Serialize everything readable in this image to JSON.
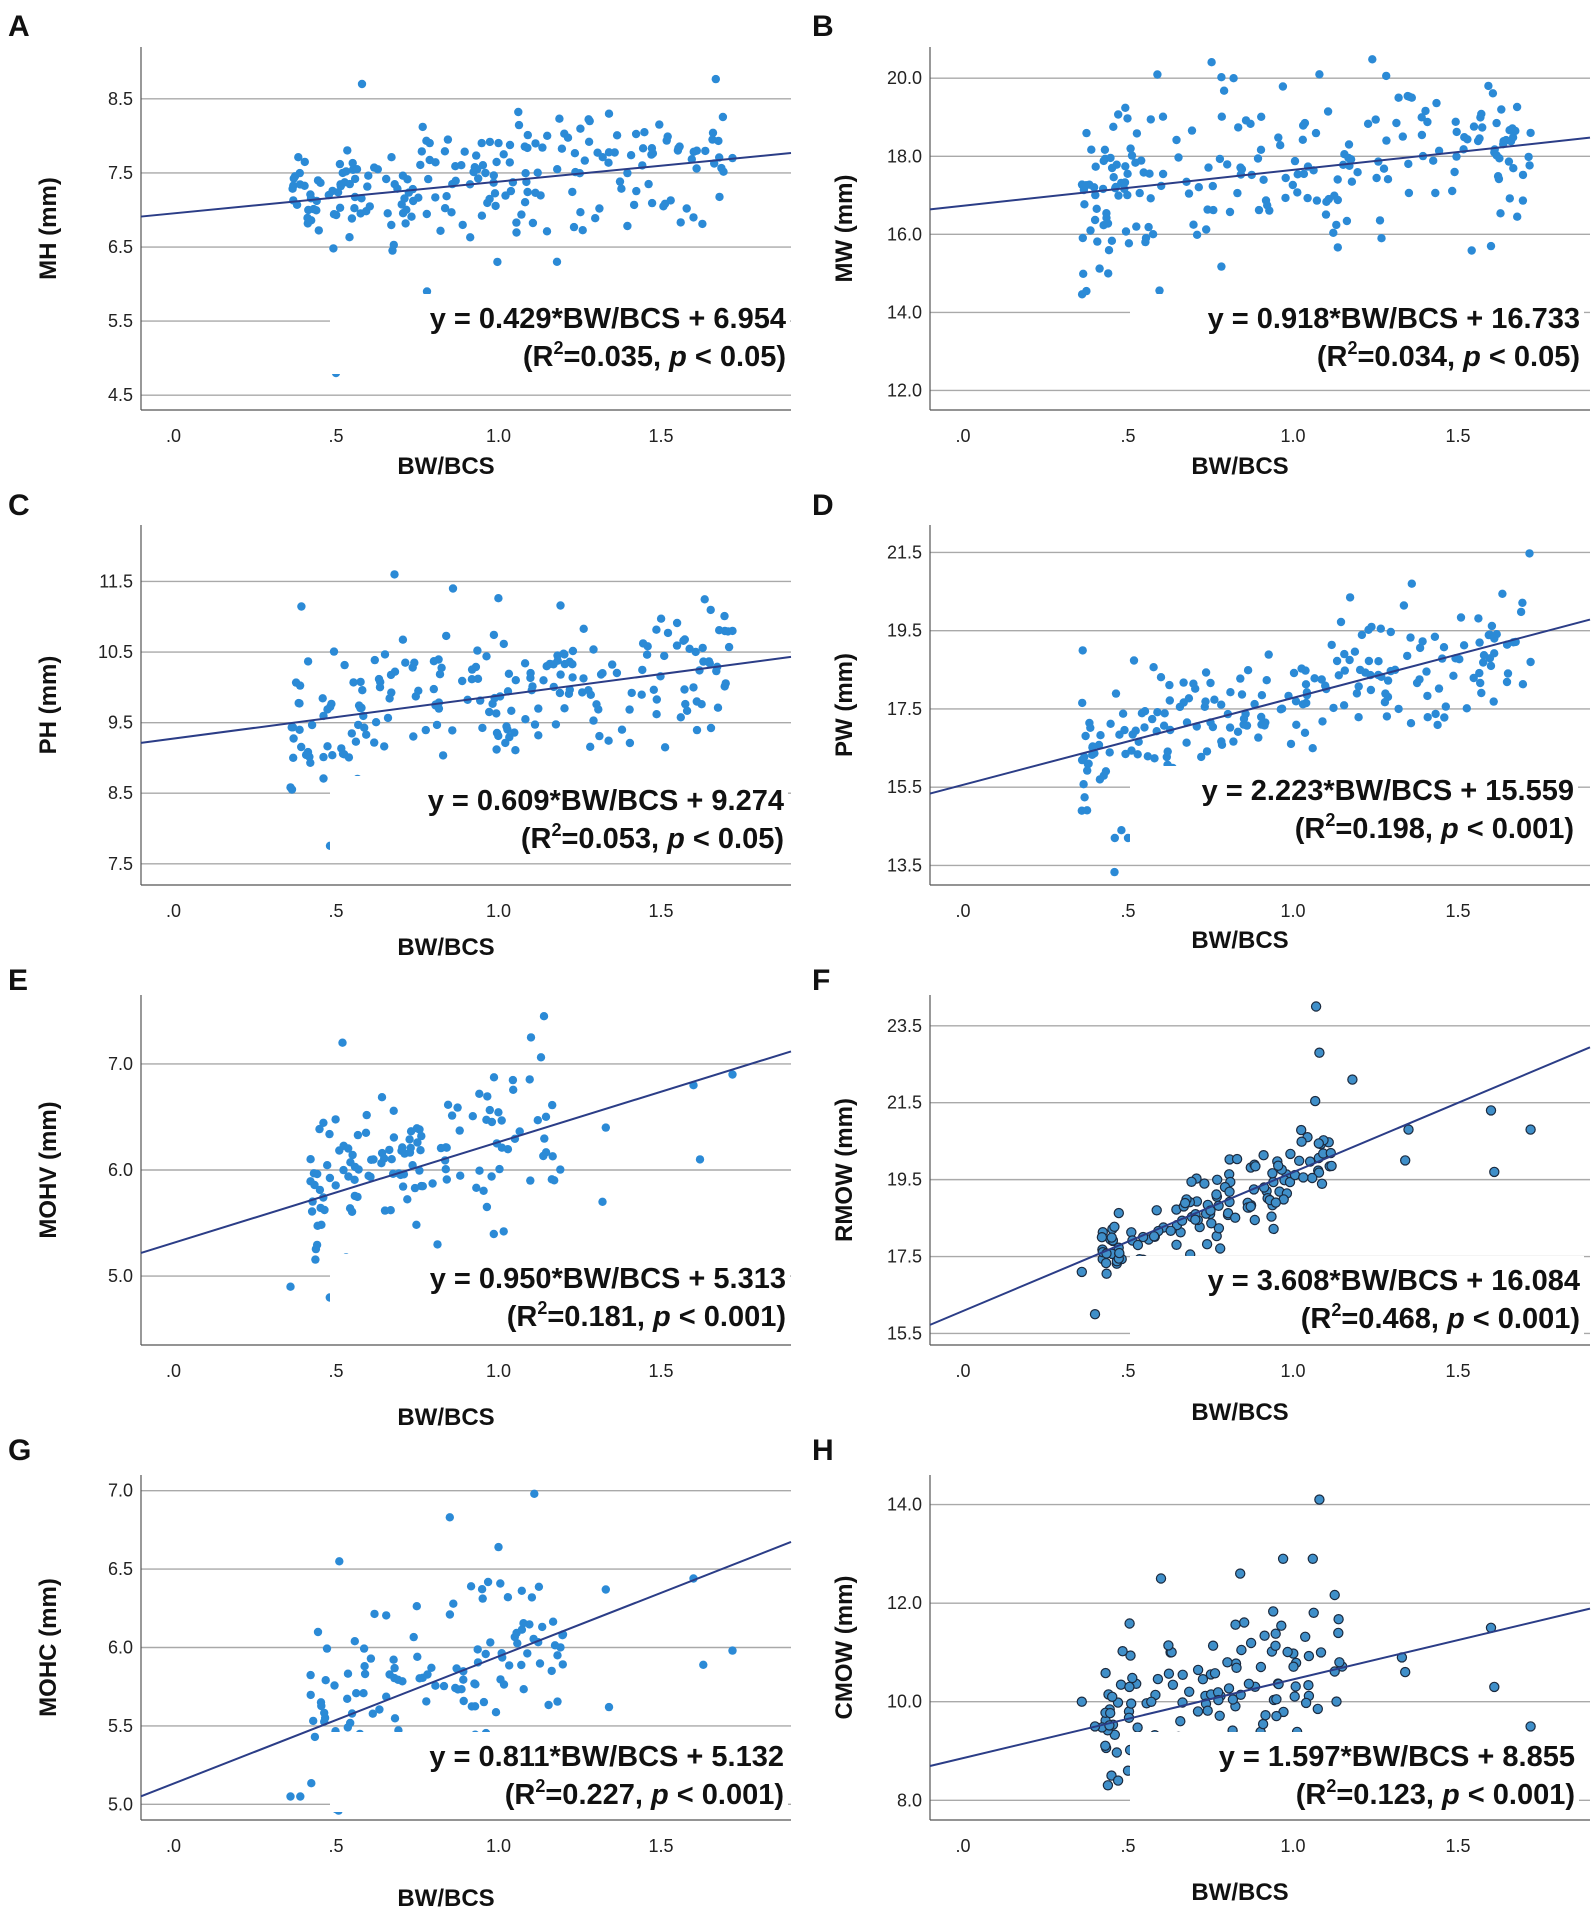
{
  "figure": {
    "point_color": "#2b8ad6",
    "point_color_outlined": "#3f8fc9",
    "outline_color": "#1b2a3f",
    "fit_line_color": "#2b3d87",
    "grid_color": "#a9a9a9"
  },
  "chart_data": [
    {
      "panel": "A",
      "type": "scatter",
      "xlabel": "BW/BCS",
      "ylabel": "MH (mm)",
      "xlim": [
        -0.1,
        1.9
      ],
      "ylim": [
        4.3,
        9.2
      ],
      "xticks": [
        ".0",
        ".5",
        "1.0",
        "1.5"
      ],
      "xtick_values": [
        0,
        0.5,
        1.0,
        1.5
      ],
      "yticks": [
        "4.5",
        "5.5",
        "6.5",
        "7.5",
        "8.5"
      ],
      "ytick_values": [
        4.5,
        5.5,
        6.5,
        7.5,
        8.5
      ],
      "grid": "horizontal",
      "fit": {
        "slope": 0.429,
        "intercept": 6.954
      },
      "equation": "y = 0.429*BW/BCS + 6.954",
      "r2_prefix": "(R",
      "r2_sup": "2",
      "r2_value": "=0.035, ",
      "p_label": "p",
      "p_value": " < 0.05)",
      "outlined_points": false,
      "n_points": 210,
      "x_range": [
        0.36,
        1.72
      ],
      "y_spread": 0.44,
      "extra_points": [
        [
          0.58,
          8.7
        ],
        [
          0.5,
          4.8
        ],
        [
          1.34,
          8.3
        ],
        [
          1.6,
          6.9
        ],
        [
          1.61,
          7.8
        ],
        [
          1.72,
          7.7
        ],
        [
          0.8,
          5.7
        ],
        [
          0.78,
          5.9
        ],
        [
          1.18,
          6.3
        ]
      ]
    },
    {
      "panel": "B",
      "type": "scatter",
      "xlabel": "BW/BCS",
      "ylabel": "MW (mm)",
      "xlim": [
        -0.1,
        1.9
      ],
      "ylim": [
        11.5,
        20.8
      ],
      "xticks": [
        ".0",
        ".5",
        "1.0",
        "1.5"
      ],
      "xtick_values": [
        0,
        0.5,
        1.0,
        1.5
      ],
      "yticks": [
        "12.0",
        "14.0",
        "16.0",
        "18.0",
        "20.0"
      ],
      "ytick_values": [
        12,
        14,
        16,
        18,
        20
      ],
      "grid": "horizontal",
      "fit": {
        "slope": 0.918,
        "intercept": 16.733
      },
      "equation": "y = 0.918*BW/BCS + 16.733",
      "r2_prefix": "(R",
      "r2_sup": "2",
      "r2_value": "=0.034, ",
      "p_label": "p",
      "p_value": " < 0.05)",
      "outlined_points": false,
      "n_points": 210,
      "x_range": [
        0.36,
        1.72
      ],
      "y_spread": 1.0,
      "extra_points": [
        [
          0.82,
          20.0
        ],
        [
          1.08,
          20.1
        ],
        [
          1.32,
          19.5
        ],
        [
          1.36,
          19.5
        ],
        [
          1.39,
          19.0
        ],
        [
          1.6,
          15.7
        ],
        [
          1.61,
          18.1
        ],
        [
          1.72,
          18.6
        ],
        [
          0.52,
          13.4
        ],
        [
          0.67,
          14.3
        ],
        [
          0.44,
          15.0
        ]
      ]
    },
    {
      "panel": "C",
      "type": "scatter",
      "xlabel": "BW/BCS",
      "ylabel": "PH (mm)",
      "xlim": [
        -0.1,
        1.9
      ],
      "ylim": [
        7.2,
        12.3
      ],
      "xticks": [
        ".0",
        ".5",
        "1.0",
        "1.5"
      ],
      "xtick_values": [
        0,
        0.5,
        1.0,
        1.5
      ],
      "yticks": [
        "7.5",
        "8.5",
        "9.5",
        "10.5",
        "11.5"
      ],
      "ytick_values": [
        7.5,
        8.5,
        9.5,
        10.5,
        11.5
      ],
      "grid": "horizontal",
      "fit": {
        "slope": 0.609,
        "intercept": 9.274
      },
      "equation": "y = 0.609*BW/BCS + 9.274",
      "r2_prefix": "(R",
      "r2_sup": "2",
      "r2_value": "=0.053, ",
      "p_label": "p",
      "p_value": " < 0.05)",
      "outlined_points": false,
      "n_points": 210,
      "x_range": [
        0.36,
        1.72
      ],
      "y_spread": 0.52,
      "extra_points": [
        [
          0.68,
          11.6
        ],
        [
          0.86,
          11.4
        ],
        [
          0.5,
          7.8
        ],
        [
          1.38,
          9.4
        ],
        [
          1.6,
          10.0
        ],
        [
          1.61,
          9.8
        ],
        [
          1.72,
          10.8
        ],
        [
          1.32,
          10.2
        ]
      ]
    },
    {
      "panel": "D",
      "type": "scatter",
      "xlabel": "BW/BCS",
      "ylabel": "PW (mm)",
      "xlim": [
        -0.1,
        1.9
      ],
      "ylim": [
        13.0,
        22.2
      ],
      "xticks": [
        ".0",
        ".5",
        "1.0",
        "1.5"
      ],
      "xtick_values": [
        0,
        0.5,
        1.0,
        1.5
      ],
      "yticks": [
        "13.5",
        "15.5",
        "17.5",
        "19.5",
        "21.5"
      ],
      "ytick_values": [
        13.5,
        15.5,
        17.5,
        19.5,
        21.5
      ],
      "grid": "horizontal",
      "fit": {
        "slope": 2.223,
        "intercept": 15.559
      },
      "equation": "y = 2.223*BW/BCS + 15.559",
      "r2_prefix": "(R",
      "r2_sup": "2",
      "r2_value": "=0.198, ",
      "p_label": "p",
      "p_value": " < 0.001)",
      "outlined_points": false,
      "n_points": 210,
      "x_range": [
        0.36,
        1.72
      ],
      "y_spread": 0.9,
      "extra_points": [
        [
          1.36,
          20.7
        ],
        [
          1.6,
          18.6
        ],
        [
          1.61,
          19.3
        ],
        [
          1.72,
          18.7
        ],
        [
          1.32,
          17.5
        ],
        [
          0.46,
          14.2
        ],
        [
          0.48,
          14.4
        ],
        [
          0.5,
          14.2
        ],
        [
          0.36,
          14.9
        ]
      ]
    },
    {
      "panel": "E",
      "type": "scatter",
      "xlabel": "BW/BCS",
      "ylabel": "MOHV (mm)",
      "xlim": [
        -0.1,
        1.9
      ],
      "ylim": [
        4.35,
        7.65
      ],
      "xticks": [
        ".0",
        ".5",
        "1.0",
        "1.5"
      ],
      "xtick_values": [
        0,
        0.5,
        1.0,
        1.5
      ],
      "yticks": [
        "5.0",
        "6.0",
        "7.0"
      ],
      "ytick_values": [
        5,
        6,
        7
      ],
      "grid": "horizontal",
      "fit": {
        "slope": 0.95,
        "intercept": 5.313
      },
      "equation": "y = 0.950*BW/BCS + 5.313",
      "r2_prefix": "(R",
      "r2_sup": "2",
      "r2_value": "=0.181, ",
      "p_label": "p",
      "p_value": " < 0.001)",
      "outlined_points": false,
      "n_points": 130,
      "x_range": [
        0.42,
        1.2
      ],
      "y_spread": 0.36,
      "extra_points": [
        [
          1.14,
          7.45
        ],
        [
          0.52,
          7.2
        ],
        [
          1.33,
          6.4
        ],
        [
          1.32,
          5.7
        ],
        [
          1.6,
          6.8
        ],
        [
          1.62,
          6.1
        ],
        [
          1.72,
          6.9
        ],
        [
          0.36,
          4.9
        ],
        [
          0.49,
          4.8
        ],
        [
          1.1,
          7.25
        ]
      ]
    },
    {
      "panel": "F",
      "type": "scatter",
      "xlabel": "BW/BCS",
      "ylabel": "RMOW (mm)",
      "xlim": [
        -0.1,
        1.9
      ],
      "ylim": [
        15.2,
        24.3
      ],
      "xticks": [
        ".0",
        ".5",
        "1.0",
        "1.5"
      ],
      "xtick_values": [
        0,
        0.5,
        1.0,
        1.5
      ],
      "yticks": [
        "15.5",
        "17.5",
        "19.5",
        "21.5",
        "23.5"
      ],
      "ytick_values": [
        15.5,
        17.5,
        19.5,
        21.5,
        23.5
      ],
      "grid": "horizontal",
      "fit": {
        "slope": 3.608,
        "intercept": 16.084
      },
      "equation": "y = 3.608*BW/BCS + 16.084",
      "r2_prefix": "(R",
      "r2_sup": "2",
      "r2_value": "=0.468, ",
      "p_label": "p",
      "p_value": " < 0.001)",
      "outlined_points": true,
      "n_points": 130,
      "x_range": [
        0.42,
        1.12
      ],
      "y_spread": 0.55,
      "extra_points": [
        [
          1.07,
          24.0
        ],
        [
          1.08,
          22.8
        ],
        [
          1.18,
          22.1
        ],
        [
          1.34,
          20.0
        ],
        [
          1.35,
          20.8
        ],
        [
          1.6,
          21.3
        ],
        [
          1.61,
          19.7
        ],
        [
          1.72,
          20.8
        ],
        [
          0.36,
          17.1
        ],
        [
          0.4,
          16.0
        ]
      ]
    },
    {
      "panel": "G",
      "type": "scatter",
      "xlabel": "BW/BCS",
      "ylabel": "MOHC (mm)",
      "xlim": [
        -0.1,
        1.9
      ],
      "ylim": [
        4.9,
        7.1
      ],
      "xticks": [
        ".0",
        ".5",
        "1.0",
        "1.5"
      ],
      "xtick_values": [
        0,
        0.5,
        1.0,
        1.5
      ],
      "yticks": [
        "5.0",
        "5.5",
        "6.0",
        "6.5",
        "7.0"
      ],
      "ytick_values": [
        5.0,
        5.5,
        6.0,
        6.5,
        7.0
      ],
      "grid": "horizontal",
      "fit": {
        "slope": 0.811,
        "intercept": 5.132
      },
      "equation": "y = 0.811*BW/BCS + 5.132",
      "r2_prefix": "(R",
      "r2_sup": "2",
      "r2_value": "=0.227, ",
      "p_label": "p",
      "p_value": " < 0.001)",
      "outlined_points": false,
      "n_points": 130,
      "x_range": [
        0.42,
        1.2
      ],
      "y_spread": 0.28,
      "extra_points": [
        [
          1.11,
          6.98
        ],
        [
          0.85,
          6.83
        ],
        [
          1.0,
          6.64
        ],
        [
          0.51,
          6.55
        ],
        [
          1.33,
          6.37
        ],
        [
          1.34,
          5.62
        ],
        [
          1.6,
          6.44
        ],
        [
          1.63,
          5.89
        ],
        [
          1.72,
          5.98
        ],
        [
          0.36,
          5.05
        ],
        [
          0.39,
          5.05
        ],
        [
          0.5,
          4.97
        ]
      ]
    },
    {
      "panel": "H",
      "type": "scatter",
      "xlabel": "BW/BCS",
      "ylabel": "CMOW (mm)",
      "xlim": [
        -0.1,
        1.9
      ],
      "ylim": [
        7.6,
        14.6
      ],
      "xticks": [
        ".0",
        ".5",
        "1.0",
        "1.5"
      ],
      "xtick_values": [
        0,
        0.5,
        1.0,
        1.5
      ],
      "yticks": [
        "8.0",
        "10.0",
        "12.0",
        "14.0"
      ],
      "ytick_values": [
        8,
        10,
        12,
        14
      ],
      "grid": "horizontal",
      "fit": {
        "slope": 1.597,
        "intercept": 8.855
      },
      "equation": "y = 1.597*BW/BCS + 8.855",
      "r2_prefix": "(R",
      "r2_sup": "2",
      "r2_value": "=0.123, ",
      "p_label": "p",
      "p_value": " < 0.001)",
      "outlined_points": true,
      "n_points": 120,
      "x_range": [
        0.42,
        1.15
      ],
      "y_spread": 0.75,
      "extra_points": [
        [
          1.08,
          14.1
        ],
        [
          0.97,
          12.9
        ],
        [
          1.06,
          12.9
        ],
        [
          0.84,
          12.6
        ],
        [
          0.6,
          12.5
        ],
        [
          1.33,
          10.9
        ],
        [
          1.34,
          10.6
        ],
        [
          1.6,
          11.5
        ],
        [
          1.61,
          10.3
        ],
        [
          1.72,
          9.5
        ],
        [
          0.36,
          10.0
        ],
        [
          0.4,
          9.5
        ],
        [
          0.45,
          8.5
        ],
        [
          0.47,
          8.4
        ],
        [
          0.5,
          8.6
        ]
      ]
    }
  ]
}
